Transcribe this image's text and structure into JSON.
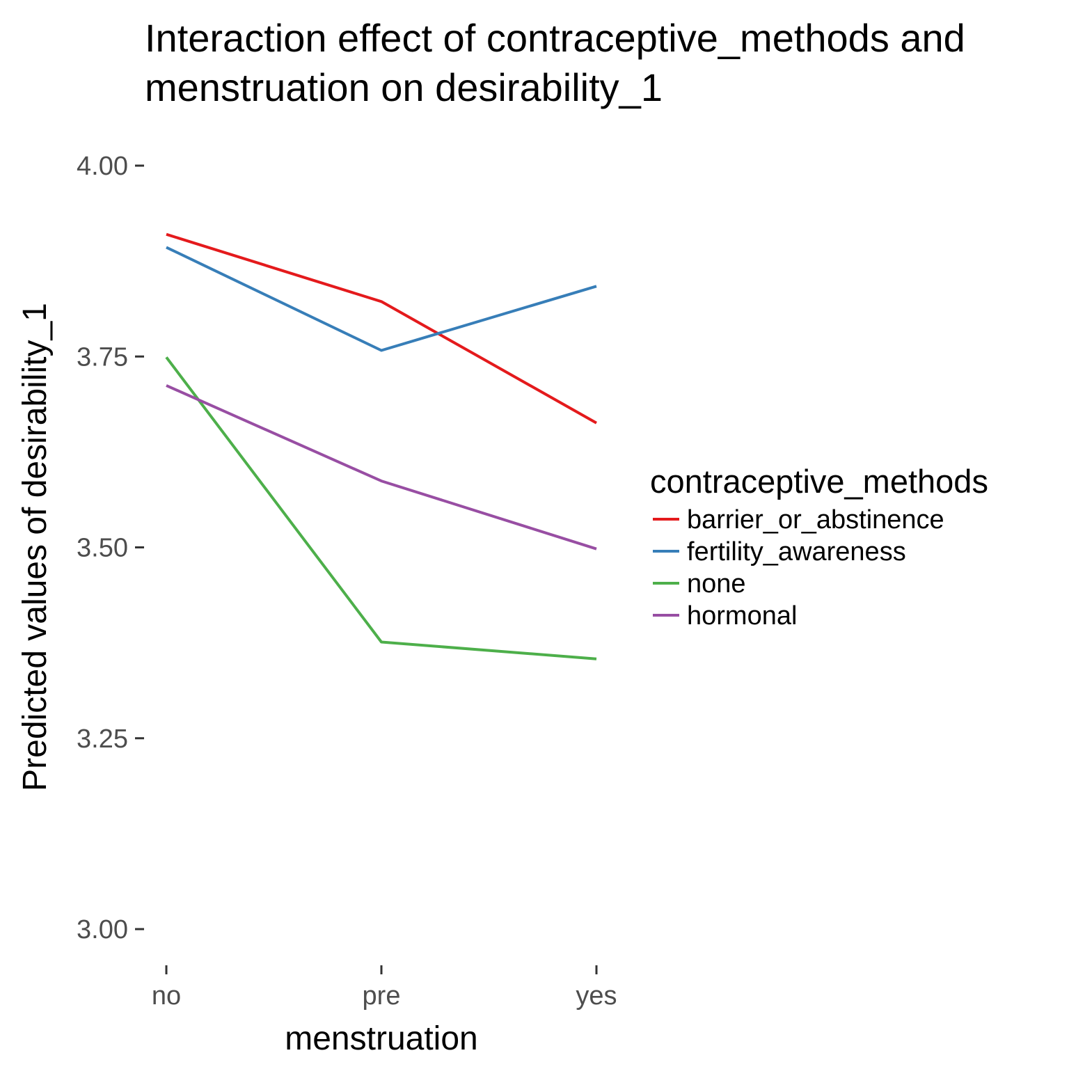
{
  "chart_data": {
    "type": "line",
    "title_lines": [
      "Interaction effect of contraceptive_methods and",
      "menstruation on desirability_1"
    ],
    "xlabel": "menstruation",
    "ylabel": "Predicted values of desirability_1",
    "categories": [
      "no",
      "pre",
      "yes"
    ],
    "ylim": [
      2.95,
      4.03
    ],
    "yticks": [
      3.0,
      3.25,
      3.5,
      3.75,
      4.0
    ],
    "ytick_labels": [
      "3.00",
      "3.25",
      "3.50",
      "3.75",
      "4.00"
    ],
    "grid": false,
    "legend": {
      "title": "contraceptive_methods",
      "position": "right"
    },
    "series": [
      {
        "name": "barrier_or_abstinence",
        "color": "#E41A1C",
        "values": [
          3.91,
          3.822,
          3.663
        ]
      },
      {
        "name": "fertility_awareness",
        "color": "#377EB8",
        "values": [
          3.893,
          3.758,
          3.842
        ]
      },
      {
        "name": "none",
        "color": "#4DAF4A",
        "values": [
          3.749,
          3.376,
          3.354
        ]
      },
      {
        "name": "hormonal",
        "color": "#984EA3",
        "values": [
          3.712,
          3.587,
          3.498
        ]
      }
    ]
  }
}
